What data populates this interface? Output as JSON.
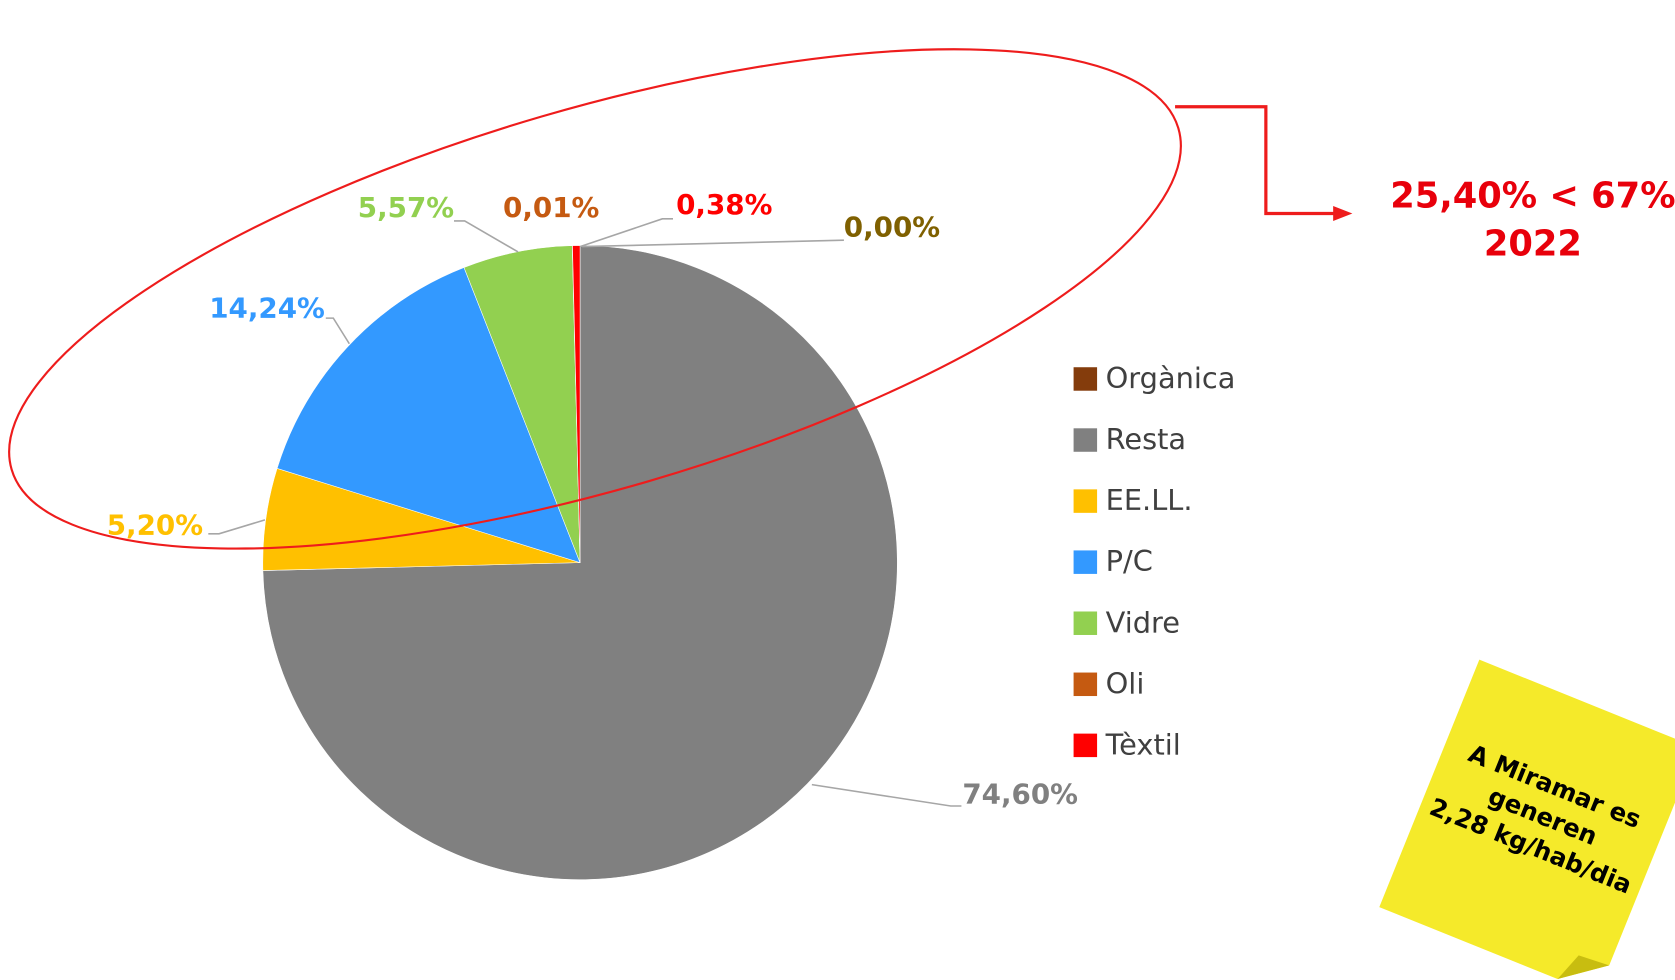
{
  "chart_data": {
    "type": "pie",
    "categories": [
      "Orgànica",
      "Resta",
      "EE.LL.",
      "P/C",
      "Vidre",
      "Oli",
      "Tèxtil"
    ],
    "values": [
      0.0,
      74.6,
      5.2,
      14.24,
      5.57,
      0.01,
      0.38
    ],
    "value_labels": [
      "0,00%",
      "74,60%",
      "5,20%",
      "14,24%",
      "5,57%",
      "0,01%",
      "0,38%"
    ],
    "colors": [
      "#843c0c",
      "#808080",
      "#ffc000",
      "#3399ff",
      "#92d050",
      "#c55a11",
      "#ff0000"
    ],
    "label_colors": [
      "#7f6000",
      "#808080",
      "#ffc000",
      "#3399ff",
      "#92d050",
      "#c55a11",
      "#ff0000"
    ],
    "legend": "right",
    "annotations": [
      "25,40% < 67%",
      "2022"
    ],
    "note": [
      "A Miramar es",
      "generen",
      "2,28 kg/hab/dia"
    ]
  }
}
